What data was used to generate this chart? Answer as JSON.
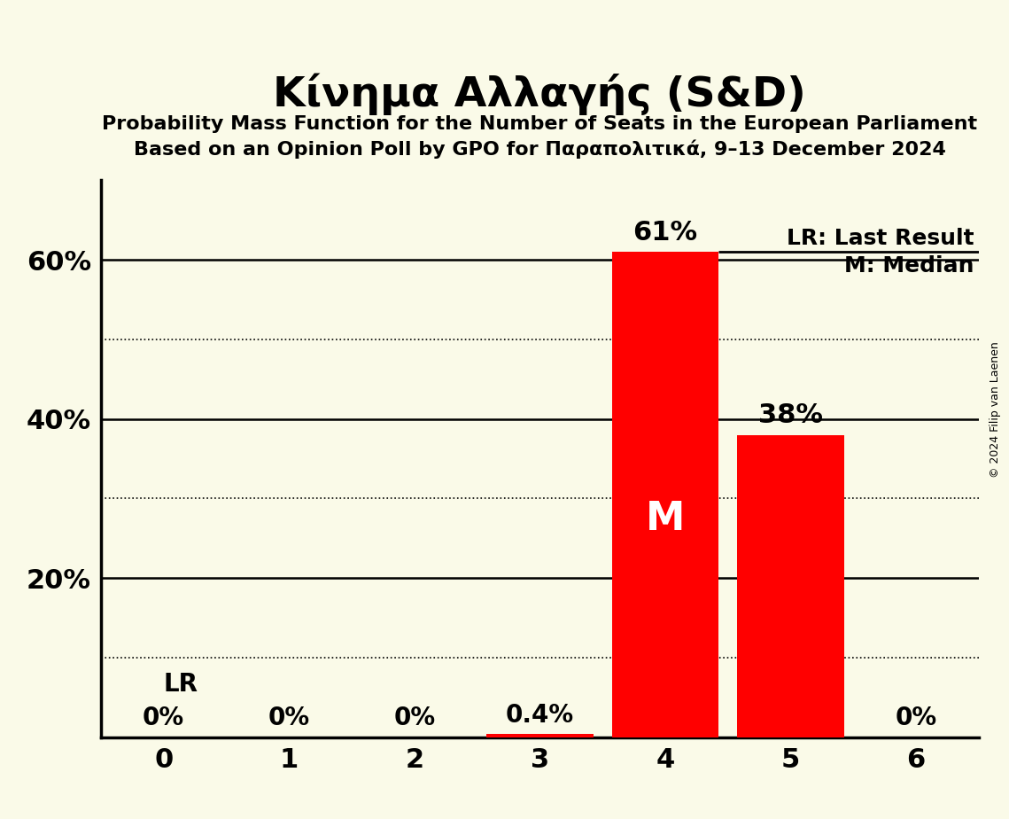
{
  "title": "Κίνημα Αλλαγής (S&D)",
  "subtitle1": "Probability Mass Function for the Number of Seats in the European Parliament",
  "subtitle2": "Based on an Opinion Poll by GPO for Παραπολιτικά, 9–13 December 2024",
  "copyright": "© 2024 Filip van Laenen",
  "categories": [
    0,
    1,
    2,
    3,
    4,
    5,
    6
  ],
  "values": [
    0.0,
    0.0,
    0.0,
    0.004,
    0.61,
    0.38,
    0.0
  ],
  "bar_color": "#FF0000",
  "background_color": "#FAFAE8",
  "median_bar": 4,
  "median_label": "M",
  "lr_level": 0.1,
  "lr_label": "LR",
  "legend_lr": "LR: Last Result",
  "legend_m": "M: Median",
  "ylim": [
    0,
    0.7
  ],
  "yticks": [
    0.0,
    0.1,
    0.2,
    0.3,
    0.4,
    0.5,
    0.6
  ],
  "yticklabels": [
    "",
    "",
    "20%",
    "",
    "40%",
    "",
    "60%"
  ],
  "bar_top_labels": [
    "0%",
    "0%",
    "0%",
    "0.4%",
    "61%",
    "38%",
    "0%"
  ],
  "dotted_gridlines": [
    0.1,
    0.3,
    0.5
  ],
  "solid_gridlines": [
    0.2,
    0.4,
    0.6
  ]
}
